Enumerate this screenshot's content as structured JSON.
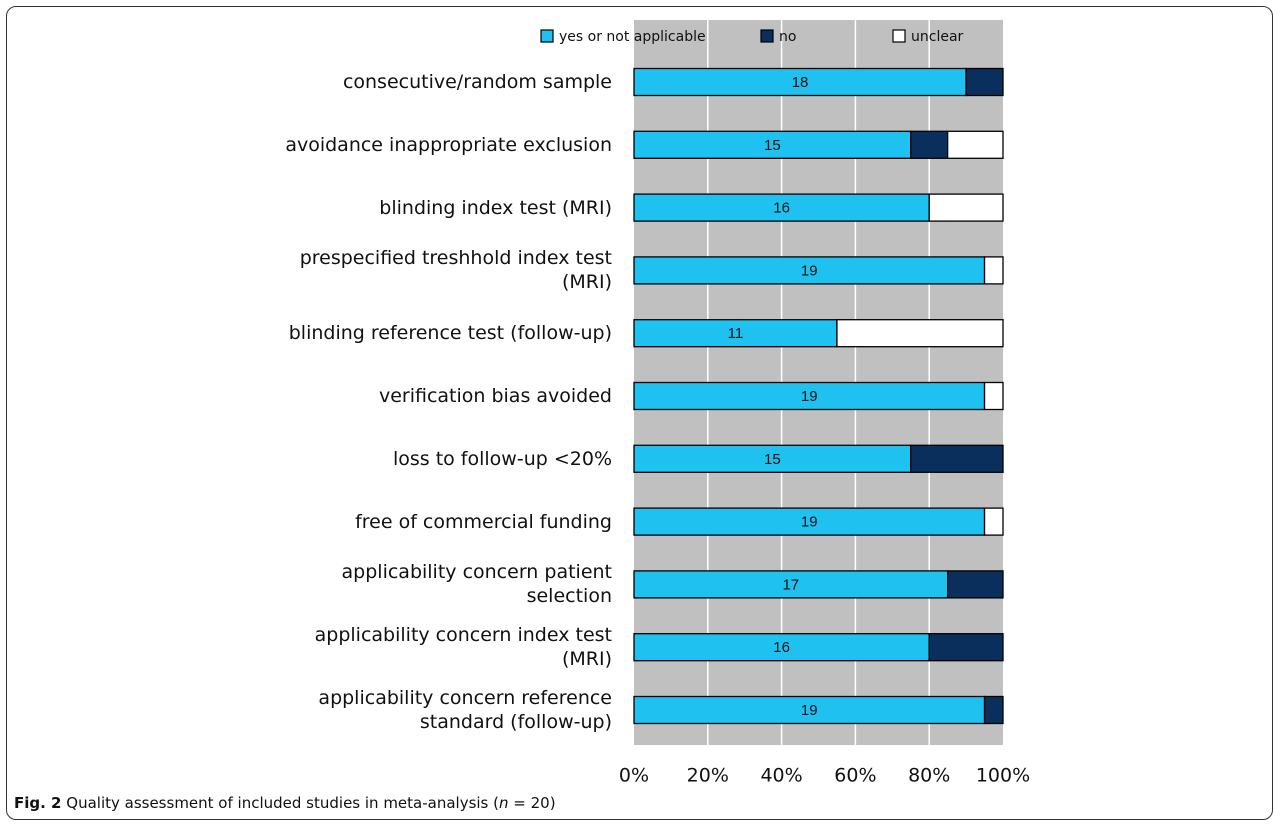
{
  "chart_data": {
    "type": "stacked-barh",
    "categories": [
      "consecutive/random sample",
      "avoidance inappropriate exclusion",
      "blinding index test (MRI)",
      "prespecified treshhold index test\n(MRI)",
      "blinding reference test (follow-up)",
      "verification bias avoided",
      "loss to follow-up <20%",
      "free of commercial funding",
      "applicability concern patient\nselection",
      "applicability concern index test\n(MRI)",
      "applicability concern reference\nstandard (follow-up)"
    ],
    "series": [
      {
        "name": "yes or not applicable",
        "color": "#1ec1f0",
        "values": [
          18,
          15,
          16,
          19,
          11,
          19,
          15,
          19,
          17,
          16,
          19
        ],
        "show_labels": true
      },
      {
        "name": "no",
        "color": "#0b2f5c",
        "values": [
          2,
          2,
          0,
          0,
          0,
          0,
          5,
          0,
          3,
          4,
          1
        ]
      },
      {
        "name": "unclear",
        "color": "#ffffff",
        "values": [
          0,
          3,
          4,
          1,
          9,
          1,
          0,
          1,
          0,
          0,
          0
        ]
      }
    ],
    "xlim": [
      0,
      20
    ],
    "xticks": [
      {
        "value": 0,
        "label": "0%"
      },
      {
        "value": 4,
        "label": "20%"
      },
      {
        "value": 8,
        "label": "40%"
      },
      {
        "value": 12,
        "label": "60%"
      },
      {
        "value": 16,
        "label": "80%"
      },
      {
        "value": 20,
        "label": "100%"
      }
    ],
    "grid": true,
    "legend": "top"
  },
  "caption": {
    "label": "Fig. 2",
    "before": "Quality assessment of included studies in meta-analysis (",
    "variable": "n",
    "after": " = 20)"
  }
}
